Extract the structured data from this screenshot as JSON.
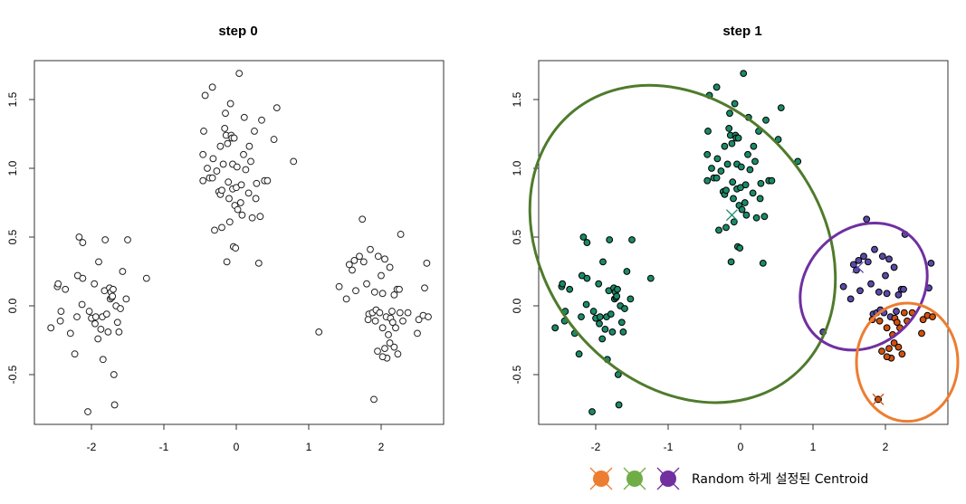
{
  "chart_data": [
    {
      "type": "scatter",
      "title": "step 0",
      "xlim": [
        -2.7,
        2.7
      ],
      "ylim": [
        -0.85,
        1.78
      ],
      "xticks": [
        -2,
        -1,
        0,
        1,
        2
      ],
      "yticks": [
        -0.5,
        0.0,
        0.5,
        1.0,
        1.5
      ],
      "xtick_labels": [
        "-2",
        "-1",
        "0",
        "1",
        "2"
      ],
      "ytick_labels": [
        "-0.5",
        "0.0",
        "0.5",
        "1.0",
        "1.5"
      ],
      "point_style": "open"
    },
    {
      "type": "scatter",
      "title": "step 1",
      "xlim": [
        -2.7,
        2.7
      ],
      "ylim": [
        -0.85,
        1.78
      ],
      "xticks": [
        -2,
        -1,
        0,
        1,
        2
      ],
      "yticks": [
        -0.5,
        0.0,
        0.5,
        1.0,
        1.5
      ],
      "xtick_labels": [
        "-2",
        "-1",
        "0",
        "1",
        "2"
      ],
      "ytick_labels": [
        "-0.5",
        "0.0",
        "0.5",
        "1.0",
        "1.5"
      ],
      "point_style": "filled",
      "centroids": [
        {
          "name": "orange",
          "x": 1.9,
          "y": -0.68
        },
        {
          "name": "green",
          "x": -0.12,
          "y": 0.66
        },
        {
          "name": "purple",
          "x": 1.62,
          "y": 0.28
        }
      ],
      "ellipses": [
        {
          "cluster": "green",
          "cx": -0.8,
          "cy": 0.45,
          "rx": 1.9,
          "ry": 1.25,
          "angle": -40
        },
        {
          "cluster": "purple",
          "cx": 1.7,
          "cy": 0.14,
          "rx": 0.95,
          "ry": 0.42,
          "angle": -45
        },
        {
          "cluster": "orange",
          "cx": 2.3,
          "cy": -0.41,
          "rx": 0.7,
          "ry": 0.43,
          "angle": 0
        }
      ]
    }
  ],
  "points": [
    {
      "x": -2.56,
      "y": -0.16,
      "c": "g"
    },
    {
      "x": -2.47,
      "y": 0.14,
      "c": "g"
    },
    {
      "x": -2.46,
      "y": 0.16,
      "c": "g"
    },
    {
      "x": -2.43,
      "y": -0.11,
      "c": "g"
    },
    {
      "x": -2.42,
      "y": -0.04,
      "c": "g"
    },
    {
      "x": -2.36,
      "y": 0.12,
      "c": "g"
    },
    {
      "x": -2.29,
      "y": -0.2,
      "c": "g"
    },
    {
      "x": -2.23,
      "y": -0.35,
      "c": "g"
    },
    {
      "x": -2.2,
      "y": -0.08,
      "c": "g"
    },
    {
      "x": -2.19,
      "y": 0.22,
      "c": "g"
    },
    {
      "x": -2.17,
      "y": 0.5,
      "c": "g"
    },
    {
      "x": -2.13,
      "y": 0.01,
      "c": "g"
    },
    {
      "x": -2.12,
      "y": 0.46,
      "c": "g"
    },
    {
      "x": -2.12,
      "y": 0.2,
      "c": "g"
    },
    {
      "x": -2.05,
      "y": -0.77,
      "c": "g"
    },
    {
      "x": -2.03,
      "y": -0.04,
      "c": "g"
    },
    {
      "x": -2.0,
      "y": -0.09,
      "c": "g"
    },
    {
      "x": -1.96,
      "y": 0.16,
      "c": "g"
    },
    {
      "x": -1.95,
      "y": -0.13,
      "c": "g"
    },
    {
      "x": -1.94,
      "y": -0.08,
      "c": "g"
    },
    {
      "x": -1.91,
      "y": -0.24,
      "c": "g"
    },
    {
      "x": -1.9,
      "y": 0.32,
      "c": "g"
    },
    {
      "x": -1.87,
      "y": -0.17,
      "c": "g"
    },
    {
      "x": -1.85,
      "y": -0.08,
      "c": "g"
    },
    {
      "x": -1.84,
      "y": -0.39,
      "c": "g"
    },
    {
      "x": -1.82,
      "y": 0.11,
      "c": "g"
    },
    {
      "x": -1.81,
      "y": 0.48,
      "c": "g"
    },
    {
      "x": -1.79,
      "y": -0.06,
      "c": "g"
    },
    {
      "x": -1.77,
      "y": -0.19,
      "c": "g"
    },
    {
      "x": -1.75,
      "y": 0.13,
      "c": "g"
    },
    {
      "x": -1.74,
      "y": 0.05,
      "c": "g"
    },
    {
      "x": -1.73,
      "y": 0.1,
      "c": "g"
    },
    {
      "x": -1.72,
      "y": 0.06,
      "c": "g"
    },
    {
      "x": -1.71,
      "y": 0.07,
      "c": "g"
    },
    {
      "x": -1.7,
      "y": 0.12,
      "c": "g"
    },
    {
      "x": -1.69,
      "y": -0.5,
      "c": "g"
    },
    {
      "x": -1.68,
      "y": -0.72,
      "c": "g"
    },
    {
      "x": -1.66,
      "y": 0.0,
      "c": "g"
    },
    {
      "x": -1.64,
      "y": -0.12,
      "c": "g"
    },
    {
      "x": -1.62,
      "y": -0.19,
      "c": "g"
    },
    {
      "x": -1.6,
      "y": -0.02,
      "c": "g"
    },
    {
      "x": -1.57,
      "y": 0.25,
      "c": "g"
    },
    {
      "x": -1.52,
      "y": 0.05,
      "c": "g"
    },
    {
      "x": -1.5,
      "y": 0.48,
      "c": "g"
    },
    {
      "x": -1.24,
      "y": 0.2,
      "c": "g"
    },
    {
      "x": -0.43,
      "y": 1.53,
      "c": "g"
    },
    {
      "x": -0.33,
      "y": 1.59,
      "c": "g"
    },
    {
      "x": -0.45,
      "y": 1.27,
      "c": "g"
    },
    {
      "x": -0.46,
      "y": 1.1,
      "c": "g"
    },
    {
      "x": -0.46,
      "y": 0.91,
      "c": "g"
    },
    {
      "x": -0.4,
      "y": 1.0,
      "c": "g"
    },
    {
      "x": -0.37,
      "y": 0.93,
      "c": "g"
    },
    {
      "x": -0.33,
      "y": 0.93,
      "c": "g"
    },
    {
      "x": -0.32,
      "y": 1.07,
      "c": "g"
    },
    {
      "x": -0.3,
      "y": 0.55,
      "c": "g"
    },
    {
      "x": -0.27,
      "y": 0.98,
      "c": "g"
    },
    {
      "x": -0.24,
      "y": 0.83,
      "c": "g"
    },
    {
      "x": -0.22,
      "y": 1.16,
      "c": "g"
    },
    {
      "x": -0.22,
      "y": 0.81,
      "c": "g"
    },
    {
      "x": -0.2,
      "y": 0.84,
      "c": "g"
    },
    {
      "x": -0.2,
      "y": 0.57,
      "c": "g"
    },
    {
      "x": -0.18,
      "y": 1.03,
      "c": "g"
    },
    {
      "x": -0.16,
      "y": 1.29,
      "c": "g"
    },
    {
      "x": -0.15,
      "y": 1.4,
      "c": "g"
    },
    {
      "x": -0.14,
      "y": 1.24,
      "c": "g"
    },
    {
      "x": -0.12,
      "y": 1.18,
      "c": "g"
    },
    {
      "x": -0.11,
      "y": 0.9,
      "c": "g"
    },
    {
      "x": -0.1,
      "y": 0.78,
      "c": "g"
    },
    {
      "x": -0.09,
      "y": 0.61,
      "c": "g"
    },
    {
      "x": -0.08,
      "y": 1.47,
      "c": "g"
    },
    {
      "x": -0.07,
      "y": 1.24,
      "c": "g"
    },
    {
      "x": -0.06,
      "y": 1.22,
      "c": "g"
    },
    {
      "x": -0.05,
      "y": 1.03,
      "c": "g"
    },
    {
      "x": -0.05,
      "y": 0.85,
      "c": "g"
    },
    {
      "x": -0.04,
      "y": 0.43,
      "c": "g"
    },
    {
      "x": -0.03,
      "y": 1.22,
      "c": "g"
    },
    {
      "x": -0.02,
      "y": 0.73,
      "c": "g"
    },
    {
      "x": -0.01,
      "y": 0.42,
      "c": "g"
    },
    {
      "x": 0.0,
      "y": 0.86,
      "c": "g"
    },
    {
      "x": 0.01,
      "y": 1.01,
      "c": "g"
    },
    {
      "x": 0.02,
      "y": 0.7,
      "c": "g"
    },
    {
      "x": 0.04,
      "y": 1.69,
      "c": "g"
    },
    {
      "x": 0.06,
      "y": 0.75,
      "c": "g"
    },
    {
      "x": 0.07,
      "y": 0.88,
      "c": "g"
    },
    {
      "x": 0.08,
      "y": 0.66,
      "c": "g"
    },
    {
      "x": 0.1,
      "y": 1.1,
      "c": "g"
    },
    {
      "x": 0.11,
      "y": 1.37,
      "c": "g"
    },
    {
      "x": 0.13,
      "y": 0.99,
      "c": "g"
    },
    {
      "x": 0.17,
      "y": 0.82,
      "c": "g"
    },
    {
      "x": 0.18,
      "y": 1.16,
      "c": "g"
    },
    {
      "x": 0.2,
      "y": 1.05,
      "c": "g"
    },
    {
      "x": 0.22,
      "y": 0.64,
      "c": "g"
    },
    {
      "x": 0.25,
      "y": 1.27,
      "c": "g"
    },
    {
      "x": 0.27,
      "y": 0.78,
      "c": "g"
    },
    {
      "x": 0.28,
      "y": 0.89,
      "c": "g"
    },
    {
      "x": 0.31,
      "y": 0.31,
      "c": "g"
    },
    {
      "x": 0.33,
      "y": 0.65,
      "c": "g"
    },
    {
      "x": 0.35,
      "y": 1.35,
      "c": "g"
    },
    {
      "x": 0.39,
      "y": 0.91,
      "c": "g"
    },
    {
      "x": 0.43,
      "y": 0.91,
      "c": "g"
    },
    {
      "x": 0.52,
      "y": 1.21,
      "c": "g"
    },
    {
      "x": 0.56,
      "y": 1.44,
      "c": "g"
    },
    {
      "x": 0.79,
      "y": 1.05,
      "c": "g"
    },
    {
      "x": -0.13,
      "y": 0.32,
      "c": "g"
    },
    {
      "x": 1.14,
      "y": -0.19,
      "c": "p"
    },
    {
      "x": 1.42,
      "y": 0.14,
      "c": "p"
    },
    {
      "x": 1.52,
      "y": 0.05,
      "c": "p"
    },
    {
      "x": 1.56,
      "y": 0.3,
      "c": "p"
    },
    {
      "x": 1.6,
      "y": 0.26,
      "c": "p"
    },
    {
      "x": 1.63,
      "y": 0.33,
      "c": "p"
    },
    {
      "x": 1.65,
      "y": 0.11,
      "c": "p"
    },
    {
      "x": 1.7,
      "y": 0.36,
      "c": "p"
    },
    {
      "x": 1.74,
      "y": 0.63,
      "c": "p"
    },
    {
      "x": 1.76,
      "y": 0.32,
      "c": "p"
    },
    {
      "x": 1.8,
      "y": 0.16,
      "c": "p"
    },
    {
      "x": 1.83,
      "y": -0.06,
      "c": "p"
    },
    {
      "x": 1.85,
      "y": 0.41,
      "c": "p"
    },
    {
      "x": 1.88,
      "y": -0.05,
      "c": "p"
    },
    {
      "x": 1.91,
      "y": 0.1,
      "c": "p"
    },
    {
      "x": 1.93,
      "y": -0.03,
      "c": "p"
    },
    {
      "x": 1.96,
      "y": 0.36,
      "c": "p"
    },
    {
      "x": 1.98,
      "y": -0.05,
      "c": "p"
    },
    {
      "x": 2.0,
      "y": 0.22,
      "c": "p"
    },
    {
      "x": 2.02,
      "y": 0.09,
      "c": "p"
    },
    {
      "x": 2.05,
      "y": 0.34,
      "c": "p"
    },
    {
      "x": 2.07,
      "y": -0.08,
      "c": "p"
    },
    {
      "x": 2.12,
      "y": 0.28,
      "c": "p"
    },
    {
      "x": 2.15,
      "y": -0.04,
      "c": "p"
    },
    {
      "x": 2.18,
      "y": 0.08,
      "c": "p"
    },
    {
      "x": 2.22,
      "y": 0.12,
      "c": "p"
    },
    {
      "x": 2.25,
      "y": 0.12,
      "c": "p"
    },
    {
      "x": 2.27,
      "y": 0.52,
      "c": "p"
    },
    {
      "x": 2.6,
      "y": 0.13,
      "c": "p"
    },
    {
      "x": 2.63,
      "y": 0.31,
      "c": "p"
    },
    {
      "x": 1.82,
      "y": -0.1,
      "c": "o"
    },
    {
      "x": 1.92,
      "y": -0.11,
      "c": "o"
    },
    {
      "x": 1.95,
      "y": -0.33,
      "c": "o"
    },
    {
      "x": 2.02,
      "y": -0.16,
      "c": "o"
    },
    {
      "x": 2.05,
      "y": -0.31,
      "c": "o"
    },
    {
      "x": 2.08,
      "y": -0.38,
      "c": "o"
    },
    {
      "x": 2.1,
      "y": -0.21,
      "c": "o"
    },
    {
      "x": 2.13,
      "y": -0.09,
      "c": "o"
    },
    {
      "x": 2.16,
      "y": -0.12,
      "c": "o"
    },
    {
      "x": 2.18,
      "y": -0.3,
      "c": "o"
    },
    {
      "x": 2.2,
      "y": -0.16,
      "c": "o"
    },
    {
      "x": 2.23,
      "y": -0.35,
      "c": "o"
    },
    {
      "x": 2.26,
      "y": -0.05,
      "c": "o"
    },
    {
      "x": 2.3,
      "y": -0.11,
      "c": "o"
    },
    {
      "x": 2.37,
      "y": -0.05,
      "c": "o"
    },
    {
      "x": 2.5,
      "y": -0.2,
      "c": "o"
    },
    {
      "x": 2.52,
      "y": -0.1,
      "c": "o"
    },
    {
      "x": 2.58,
      "y": -0.07,
      "c": "o"
    },
    {
      "x": 2.65,
      "y": -0.08,
      "c": "o"
    },
    {
      "x": 1.9,
      "y": -0.68,
      "c": "o"
    },
    {
      "x": 2.02,
      "y": -0.37,
      "c": "o"
    },
    {
      "x": 2.12,
      "y": -0.27,
      "c": "o"
    }
  ],
  "colors": {
    "green_point": "#1a8a68",
    "purple_point": "#5a4aa8",
    "orange_point": "#d2510f",
    "ellipse_green": "#4f7b2c",
    "ellipse_purple": "#7030a0",
    "ellipse_orange": "#ed7d31",
    "legend_orange": "#ed7d31",
    "legend_green": "#70ad47",
    "legend_purple": "#7030a0"
  },
  "legend": {
    "text": "Random 하게 설정된 Centroid",
    "markers": [
      "orange",
      "green",
      "purple"
    ]
  }
}
